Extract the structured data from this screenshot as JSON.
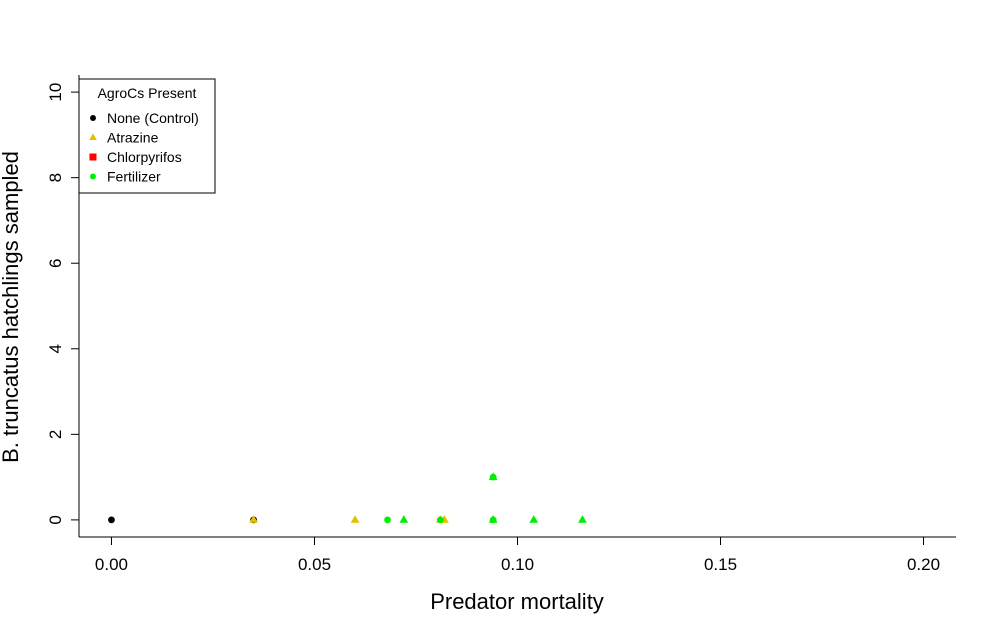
{
  "chart_data": {
    "type": "scatter",
    "title": "",
    "xlabel": "Predator mortality",
    "ylabel": "B. truncatus hatchlings sampled",
    "xlim": [
      -0.008,
      0.208
    ],
    "ylim": [
      -0.4,
      10.4
    ],
    "xticks": [
      0.0,
      0.05,
      0.1,
      0.15,
      0.2
    ],
    "xtick_labels": [
      "0.00",
      "0.05",
      "0.10",
      "0.15",
      "0.20"
    ],
    "yticks": [
      0,
      2,
      4,
      6,
      8,
      10
    ],
    "ytick_labels": [
      "0",
      "2",
      "4",
      "6",
      "8",
      "10"
    ],
    "grid": false,
    "legend": {
      "title": "AgroCs Present",
      "position": "top-left"
    },
    "series": [
      {
        "name": "None (Control)",
        "marker": "circle",
        "color": "#000000",
        "points": [
          [
            0.0,
            0
          ],
          [
            0.035,
            0
          ]
        ]
      },
      {
        "name": "Atrazine",
        "marker": "triangle",
        "color": "#e6c000",
        "points": [
          [
            0.035,
            0
          ],
          [
            0.06,
            0
          ],
          [
            0.082,
            0
          ],
          [
            0.081,
            0
          ]
        ]
      },
      {
        "name": "Chlorpyrifos",
        "marker": "square",
        "color": "#ff0000",
        "points": []
      },
      {
        "name": "Fertilizer",
        "marker": "circle",
        "color": "#00ee00",
        "points": [
          [
            0.068,
            0
          ],
          [
            0.081,
            0
          ],
          [
            0.094,
            0
          ],
          [
            0.094,
            1
          ]
        ]
      },
      {
        "name": "Fertilizer",
        "marker": "triangle",
        "color": "#00ee00",
        "points": [
          [
            0.072,
            0
          ],
          [
            0.094,
            0
          ],
          [
            0.094,
            1
          ],
          [
            0.104,
            0
          ],
          [
            0.116,
            0
          ]
        ]
      }
    ]
  }
}
